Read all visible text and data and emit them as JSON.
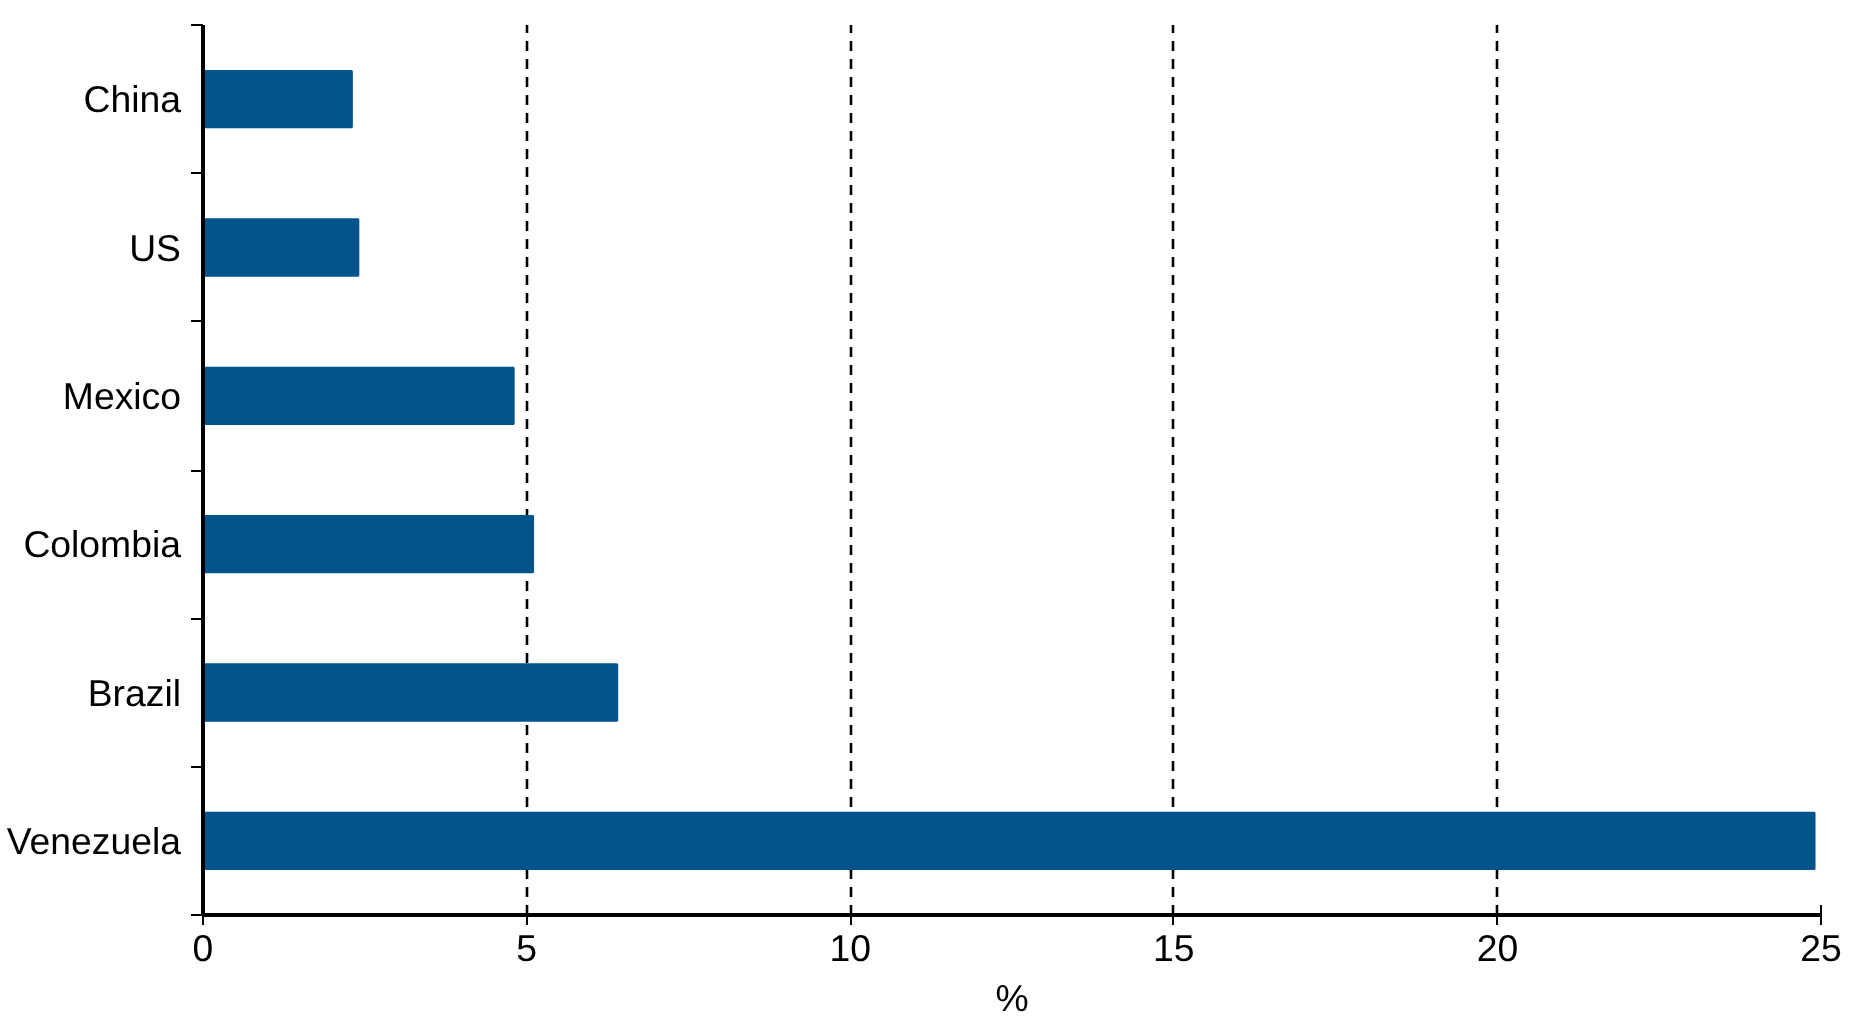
{
  "chart_data": {
    "type": "bar",
    "orientation": "horizontal",
    "categories": [
      "China",
      "US",
      "Mexico",
      "Colombia",
      "Brazil",
      "Venezuela"
    ],
    "values": [
      2.3,
      2.4,
      4.8,
      5.1,
      6.4,
      24.9
    ],
    "color": "#03548a",
    "xlim": [
      0,
      25
    ],
    "xticks": [
      0,
      5,
      10,
      15,
      20,
      25
    ],
    "xlabel": "%",
    "grid": "x"
  }
}
